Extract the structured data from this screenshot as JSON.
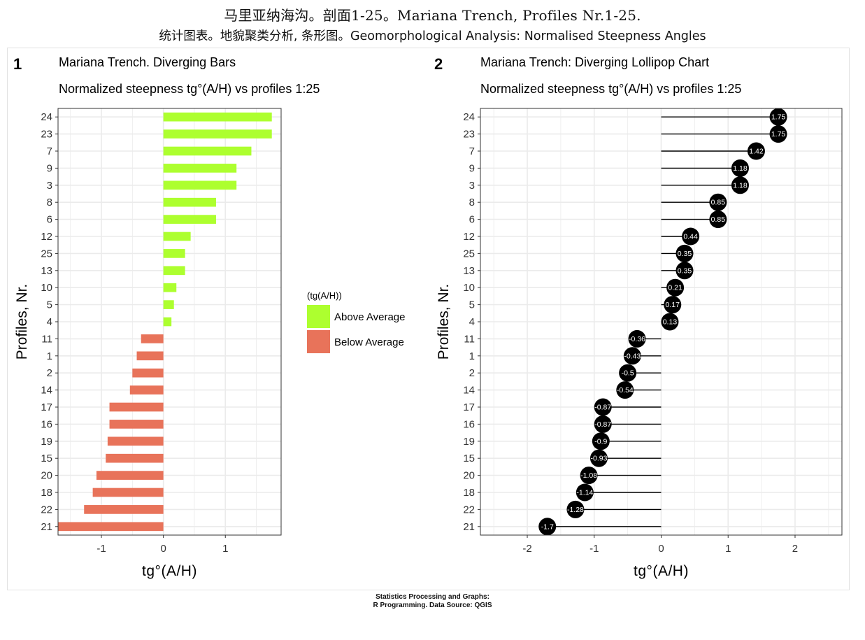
{
  "header": {
    "title": "马里亚纳海沟。剖面1-25。Mariana Trench, Profiles Nr.1-25.",
    "subtitle": "统计图表。地貌聚类分析, 条形图。Geomorphological Analysis: Normalised Steepness Angles"
  },
  "footer": {
    "line1": "Statistics Processing and Graphs:",
    "line2": "R Programming. Data Source: QGIS"
  },
  "colors": {
    "above": "#adff2f",
    "below": "#e8735a",
    "lollipop": "#000000",
    "grid": "#ebebeb",
    "panel_border": "#333333"
  },
  "chart_data": [
    {
      "type": "bar",
      "panel_tag": "1",
      "title": "Mariana Trench. Diverging Bars",
      "subtitle": "Normalized steepness tg°(A/H) vs profiles 1:25",
      "xlabel": "tg°(A/H)",
      "ylabel": "Profiles, Nr.",
      "orientation": "horizontal",
      "xlim": [
        -1.7,
        1.9
      ],
      "xticks": [
        -1,
        0,
        1
      ],
      "grid": true,
      "legend": {
        "title": "(tg(A/H))",
        "position": "right",
        "entries": [
          "Above Average",
          "Below Average"
        ]
      },
      "categories": [
        "24",
        "23",
        "7",
        "9",
        "3",
        "8",
        "6",
        "12",
        "25",
        "13",
        "10",
        "5",
        "4",
        "11",
        "1",
        "2",
        "14",
        "17",
        "16",
        "19",
        "15",
        "20",
        "18",
        "22",
        "21"
      ],
      "values": [
        1.75,
        1.75,
        1.42,
        1.18,
        1.18,
        0.85,
        0.85,
        0.44,
        0.35,
        0.35,
        0.21,
        0.17,
        0.13,
        -0.36,
        -0.43,
        -0.5,
        -0.54,
        -0.87,
        -0.87,
        -0.9,
        -0.93,
        -1.08,
        -1.14,
        -1.28,
        -1.7
      ]
    },
    {
      "type": "lollipop",
      "panel_tag": "2",
      "title": "Mariana Trench: Diverging Lollipop Chart",
      "subtitle": "Normalized steepness tg°(A/H) vs profiles 1:25",
      "xlabel": "tg°(A/H)",
      "ylabel": "Profiles, Nr.",
      "orientation": "horizontal",
      "xlim": [
        -2.7,
        2.7
      ],
      "xticks": [
        -2,
        -1,
        0,
        1,
        2
      ],
      "grid": true,
      "categories": [
        "24",
        "23",
        "7",
        "9",
        "3",
        "8",
        "6",
        "12",
        "25",
        "13",
        "10",
        "5",
        "4",
        "11",
        "1",
        "2",
        "14",
        "17",
        "16",
        "19",
        "15",
        "20",
        "18",
        "22",
        "21"
      ],
      "values": [
        1.75,
        1.75,
        1.42,
        1.18,
        1.18,
        0.85,
        0.85,
        0.44,
        0.35,
        0.35,
        0.21,
        0.17,
        0.13,
        -0.36,
        -0.43,
        -0.5,
        -0.54,
        -0.87,
        -0.87,
        -0.9,
        -0.93,
        -1.08,
        -1.14,
        -1.28,
        -1.7
      ],
      "labels": [
        "1.75",
        "1.75",
        "1.42",
        "1.18",
        "1.18",
        "0.85",
        "0.85",
        "0.44",
        "0.35",
        "0.35",
        "0.21",
        "0.17",
        "0.13",
        "-0.36",
        "-0.43",
        "-0.5",
        "-0.54",
        "-0.87",
        "-0.87",
        "-0.9",
        "-0.93",
        "-1.08",
        "-1.14",
        "-1.28",
        "-1.7"
      ]
    }
  ]
}
